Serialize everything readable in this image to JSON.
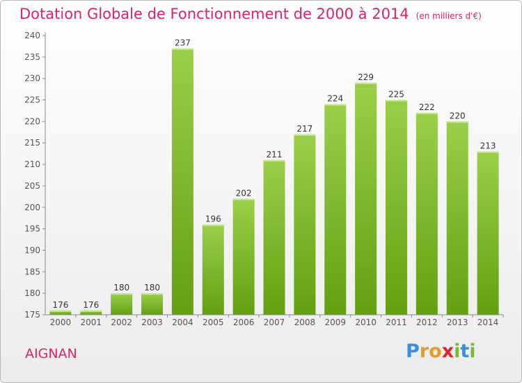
{
  "header": {
    "title": "Dotation Globale de Fonctionnement de 2000 à 2014",
    "subtitle": "(en milliers d'€)"
  },
  "commune": "AIGNAN",
  "logo": {
    "letters": [
      "P",
      "r",
      "o",
      "x",
      "i",
      "t",
      "i"
    ],
    "colors": [
      "#3b8ed9",
      "#e69a2b",
      "#e69a2b",
      "#d9262b",
      "#7fb539",
      "#3b8ed9",
      "#7fb539"
    ]
  },
  "colors": {
    "bar_light": "#9bcf4a",
    "bar_dark": "#62a012",
    "title": "#e1206b",
    "axis": "#555555"
  },
  "chart_data": {
    "type": "bar",
    "categories": [
      "2000",
      "2001",
      "2002",
      "2003",
      "2004",
      "2005",
      "2006",
      "2007",
      "2008",
      "2009",
      "2010",
      "2011",
      "2012",
      "2013",
      "2014"
    ],
    "values": [
      176,
      176,
      180,
      180,
      237,
      196,
      202,
      211,
      217,
      224,
      229,
      225,
      222,
      220,
      213
    ],
    "data_labels": [
      "176",
      "176",
      "180",
      "180",
      "237",
      "196",
      "202",
      "211",
      "217",
      "224",
      "229",
      "225",
      "222",
      "220",
      "213"
    ],
    "yticks": [
      "175",
      "180",
      "185",
      "190",
      "195",
      "200",
      "205",
      "210",
      "215",
      "220",
      "225",
      "230",
      "235",
      "240"
    ],
    "ylim": [
      175,
      240
    ],
    "grid": false,
    "legend": "none"
  }
}
